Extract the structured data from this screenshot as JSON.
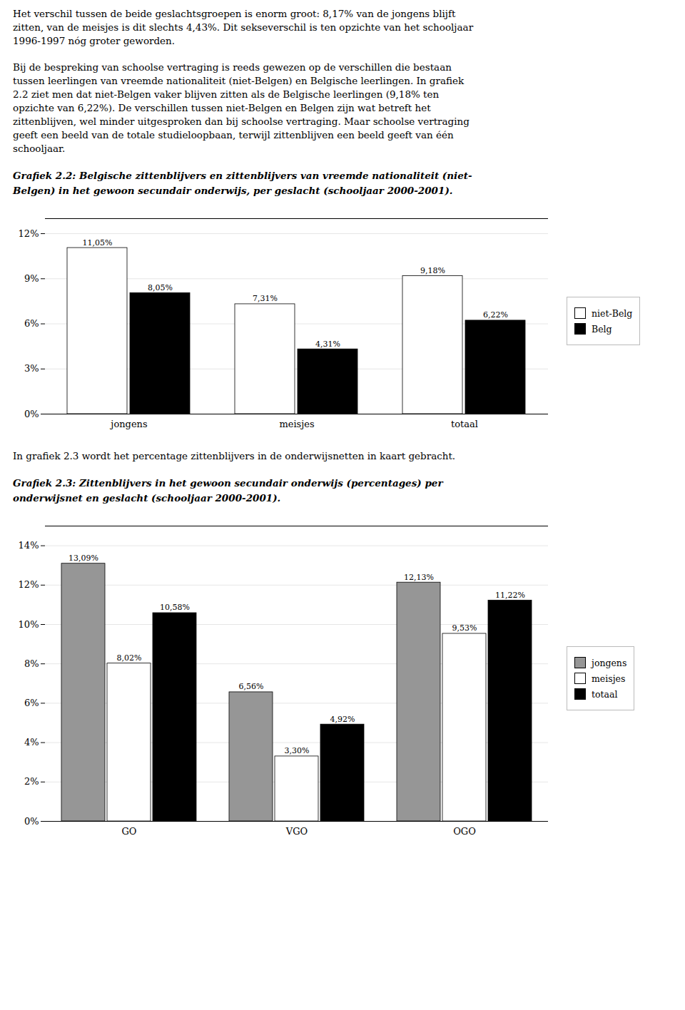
{
  "chart_data": [
    {
      "type": "bar",
      "annotations": [
        [
          "Het verschil tussen de beide geslachtsgroepen is enorm groot: 8,17% van de jongens blijft",
          "zitten, van de meisjes is dit slechts 4,43%. Dit sekseverschil is ten opzichte van het schooljaar",
          "1996-1997 nóg groter geworden."
        ],
        [
          "Bij de bespreking van schoolse vertraging is reeds gewezen op de verschillen die bestaan",
          "tussen leerlingen van vreemde nationaliteit (niet-Belgen) en Belgische leerlingen. In grafiek",
          "2.2 ziet men dat niet-Belgen vaker blijven zitten als de Belgische leerlingen (9,18% ten",
          "opzichte van 6,22%). De verschillen tussen niet-Belgen en Belgen zijn wat betreft het",
          "zittenblijven, wel minder uitgesproken dan bij schoolse vertraging. Maar schoolse vertraging",
          "geeft een beeld van de totale studieloopbaan, terwijl zittenblijven een beeld geeft van één",
          "schooljaar."
        ]
      ],
      "title": [
        "Grafiek 2.2: Belgische zittenblijvers en zittenblijvers van vreemde nationaliteit (niet-",
        "Belgen) in het gewoon secundair onderwijs, per geslacht (schooljaar 2000-2001)."
      ],
      "categories": [
        "jongens",
        "meisjes",
        "totaal"
      ],
      "series": [
        {
          "name": "niet-Belg",
          "color": "#ffffff",
          "values": [
            11.05,
            7.31,
            9.18
          ],
          "value_labels": [
            "11,05%",
            "7,31%",
            "9,18%"
          ]
        },
        {
          "name": "Belg",
          "color": "#000000",
          "values": [
            8.05,
            4.31,
            6.22
          ],
          "value_labels": [
            "8,05%",
            "4,31%",
            "6,22%"
          ]
        }
      ],
      "ylim": [
        0,
        13
      ],
      "yticks": [
        {
          "value": 0,
          "label": "0%"
        },
        {
          "value": 3,
          "label": "3%"
        },
        {
          "value": 6,
          "label": "6%"
        },
        {
          "value": 9,
          "label": "9%"
        },
        {
          "value": 12,
          "label": "12%"
        }
      ],
      "grid": true,
      "legend": "right",
      "data_labels": true
    },
    {
      "type": "bar",
      "annotations": [
        [
          "In grafiek 2.3 wordt het percentage zittenblijvers in de onderwijsnetten in kaart gebracht."
        ]
      ],
      "title": [
        "Grafiek 2.3: Zittenblijvers in het gewoon secundair onderwijs (percentages) per",
        "onderwijsnet en geslacht (schooljaar 2000-2001)."
      ],
      "categories": [
        "GO",
        "VGO",
        "OGO"
      ],
      "series": [
        {
          "name": "jongens",
          "color": "#969696",
          "values": [
            13.09,
            6.56,
            12.13
          ],
          "value_labels": [
            "13,09%",
            "6,56%",
            "12,13%"
          ]
        },
        {
          "name": "meisjes",
          "color": "#ffffff",
          "values": [
            8.02,
            3.3,
            9.53
          ],
          "value_labels": [
            "8,02%",
            "3,30%",
            "9,53%"
          ]
        },
        {
          "name": "totaal",
          "color": "#000000",
          "values": [
            10.58,
            4.92,
            11.22
          ],
          "value_labels": [
            "10,58%",
            "4,92%",
            "11,22%"
          ]
        }
      ],
      "ylim": [
        0,
        15
      ],
      "yticks": [
        {
          "value": 0,
          "label": "0%"
        },
        {
          "value": 2,
          "label": "2%"
        },
        {
          "value": 4,
          "label": "4%"
        },
        {
          "value": 6,
          "label": "6%"
        },
        {
          "value": 8,
          "label": "8%"
        },
        {
          "value": 10,
          "label": "10%"
        },
        {
          "value": 12,
          "label": "12%"
        },
        {
          "value": 14,
          "label": "14%"
        }
      ],
      "grid": true,
      "legend": "right",
      "data_labels": true
    }
  ]
}
